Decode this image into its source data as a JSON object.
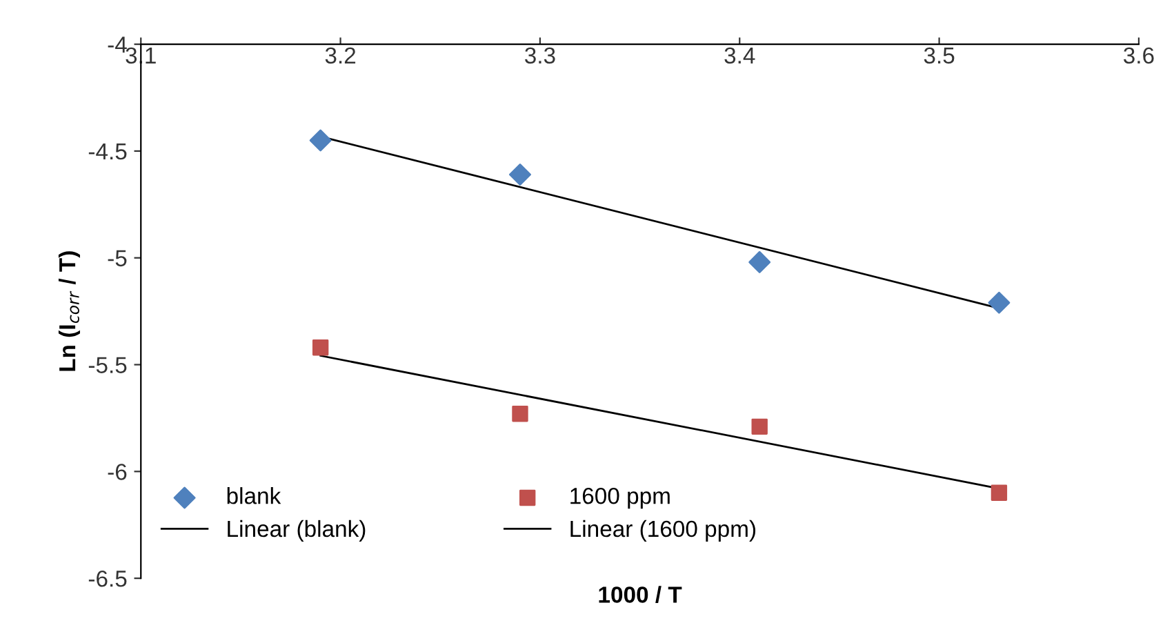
{
  "chart_data": {
    "type": "scatter",
    "xlabel": "1000 / T",
    "ylabel": "Ln (I$_{corr}$ / T)",
    "xlim": [
      3.1,
      3.6
    ],
    "xticks": [
      3.1,
      3.2,
      3.3,
      3.4,
      3.5,
      3.6
    ],
    "ylim": [
      -6.5,
      -4
    ],
    "yticks": [
      -6.5,
      -6,
      -5.5,
      -5,
      -4.5,
      -4
    ],
    "grid": false,
    "legend": "bottom left",
    "series": [
      {
        "name": "blank",
        "marker": "diamond",
        "color": "#4f81bd",
        "x": [
          3.19,
          3.29,
          3.41,
          3.53
        ],
        "values": [
          -4.45,
          -4.61,
          -5.02,
          -5.21
        ]
      },
      {
        "name": "1600 ppm",
        "marker": "square",
        "color": "#c0504d",
        "x": [
          3.19,
          3.29,
          3.41,
          3.53
        ],
        "values": [
          -5.42,
          -5.73,
          -5.79,
          -6.1
        ]
      },
      {
        "name": "Linear (blank)",
        "type": "line",
        "marker": "none",
        "line_style": "solid",
        "color": "#000000",
        "x": [
          3.19,
          3.53
        ],
        "values": [
          -4.432,
          -5.236
        ]
      },
      {
        "name": "Linear (1600 ppm)",
        "type": "line",
        "marker": "none",
        "line_style": "solid",
        "color": "#000000",
        "x": [
          3.19,
          3.53
        ],
        "values": [
          -5.458,
          -6.08
        ]
      }
    ]
  }
}
